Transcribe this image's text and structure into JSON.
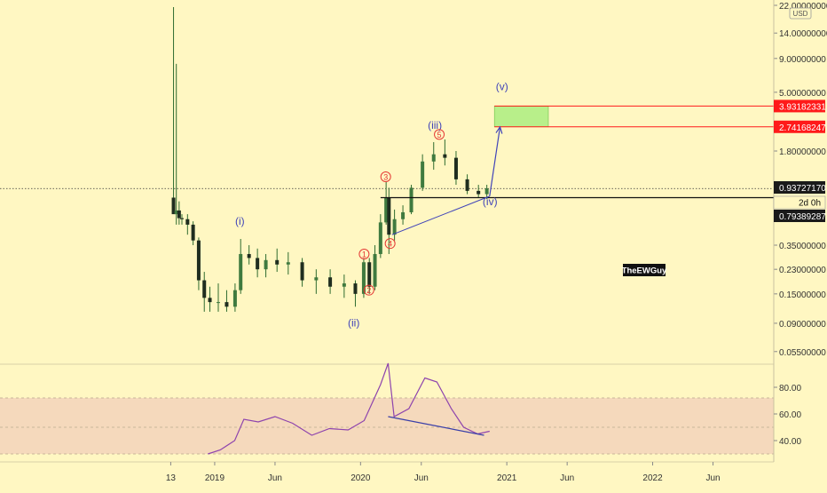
{
  "currency_badge": "USD",
  "watermark": "TheEWGuy",
  "countdown": "2d 0h",
  "price_axis": {
    "ticks": [
      "22.00000000",
      "14.00000000",
      "9.00000000",
      "5.00000000",
      "1.80000000",
      "0.35000000",
      "0.23000000",
      "0.15000000",
      "0.09000000",
      "0.05500000"
    ]
  },
  "price_badges": [
    {
      "label": "3.93182331",
      "color": "#ff1a1a",
      "text_color": "#ffffff",
      "value": 3.93182331
    },
    {
      "label": "2.74168247",
      "color": "#ff1a1a",
      "text_color": "#ffffff",
      "value": 2.74168247
    },
    {
      "label": "0.93727170",
      "color": "#1a1a1a",
      "text_color": "#ffffff",
      "value": 0.9372717
    },
    {
      "label": "0.79389287",
      "color": "#1a1a1a",
      "text_color": "#ffffff",
      "value": 0.79389287
    }
  ],
  "rsi_axis": {
    "ticks": [
      "80.00",
      "60.00",
      "40.00"
    ]
  },
  "time_axis": {
    "ticks": [
      "13",
      "2019",
      "Jun",
      "2020",
      "Jun",
      "2021",
      "Jun",
      "2022",
      "Jun"
    ]
  },
  "wave_labels": [
    "(i)",
    "(ii)",
    "(iii)",
    "(iv)",
    "(v)",
    "1",
    "2",
    "3",
    "4",
    "5"
  ],
  "colors": {
    "background": "#fff7c2",
    "candle": "#1f2d1f",
    "wick": "#2f6b2f",
    "wave": "#4044b8",
    "wave_circle": "#e53935",
    "target_zone": "#b8ef8a",
    "rsi": "#8e44ad",
    "rsi_band": "#f5d9bc",
    "rsi_divergence": "#3a3fa8",
    "target_line": "#ff1a1a"
  },
  "chart_data": [
    {
      "type": "candlestick",
      "scale": "log",
      "ylim": [
        0.045,
        22
      ],
      "xlim": [
        "2018-09-01",
        "2022-10-31"
      ],
      "grid": false,
      "ohlc_weekly_approx": [
        {
          "x": "2018-09-20",
          "o": 0.8,
          "h": 22.0,
          "l": 0.65,
          "c": 0.6
        },
        {
          "x": "2018-09-27",
          "o": 0.6,
          "h": 8.2,
          "l": 0.5,
          "c": 0.64
        },
        {
          "x": "2018-10-04",
          "o": 0.64,
          "h": 0.75,
          "l": 0.5,
          "c": 0.56
        },
        {
          "x": "2018-10-11",
          "o": 0.56,
          "h": 0.6,
          "l": 0.5,
          "c": 0.55
        },
        {
          "x": "2018-10-25",
          "o": 0.55,
          "h": 0.6,
          "l": 0.42,
          "c": 0.5
        },
        {
          "x": "2018-11-08",
          "o": 0.5,
          "h": 0.53,
          "l": 0.35,
          "c": 0.38
        },
        {
          "x": "2018-11-22",
          "o": 0.38,
          "h": 0.4,
          "l": 0.16,
          "c": 0.19
        },
        {
          "x": "2018-12-06",
          "o": 0.19,
          "h": 0.22,
          "l": 0.11,
          "c": 0.14
        },
        {
          "x": "2018-12-20",
          "o": 0.14,
          "h": 0.17,
          "l": 0.11,
          "c": 0.13
        },
        {
          "x": "2019-01-10",
          "o": 0.13,
          "h": 0.18,
          "l": 0.11,
          "c": 0.13
        },
        {
          "x": "2019-01-31",
          "o": 0.13,
          "h": 0.16,
          "l": 0.11,
          "c": 0.12
        },
        {
          "x": "2019-02-21",
          "o": 0.12,
          "h": 0.18,
          "l": 0.11,
          "c": 0.16
        },
        {
          "x": "2019-03-07",
          "o": 0.16,
          "h": 0.39,
          "l": 0.15,
          "c": 0.3
        },
        {
          "x": "2019-03-28",
          "o": 0.3,
          "h": 0.35,
          "l": 0.25,
          "c": 0.28
        },
        {
          "x": "2019-04-18",
          "o": 0.28,
          "h": 0.33,
          "l": 0.2,
          "c": 0.23
        },
        {
          "x": "2019-05-09",
          "o": 0.23,
          "h": 0.3,
          "l": 0.2,
          "c": 0.27
        },
        {
          "x": "2019-06-06",
          "o": 0.27,
          "h": 0.33,
          "l": 0.22,
          "c": 0.25
        },
        {
          "x": "2019-07-04",
          "o": 0.25,
          "h": 0.31,
          "l": 0.21,
          "c": 0.26
        },
        {
          "x": "2019-08-08",
          "o": 0.26,
          "h": 0.28,
          "l": 0.17,
          "c": 0.19
        },
        {
          "x": "2019-09-12",
          "o": 0.19,
          "h": 0.23,
          "l": 0.15,
          "c": 0.2
        },
        {
          "x": "2019-10-17",
          "o": 0.2,
          "h": 0.23,
          "l": 0.15,
          "c": 0.17
        },
        {
          "x": "2019-11-21",
          "o": 0.17,
          "h": 0.21,
          "l": 0.14,
          "c": 0.18
        },
        {
          "x": "2019-12-19",
          "o": 0.18,
          "h": 0.19,
          "l": 0.12,
          "c": 0.15
        },
        {
          "x": "2020-01-09",
          "o": 0.15,
          "h": 0.28,
          "l": 0.14,
          "c": 0.26
        },
        {
          "x": "2020-01-23",
          "o": 0.26,
          "h": 0.28,
          "l": 0.15,
          "c": 0.17
        },
        {
          "x": "2020-02-06",
          "o": 0.17,
          "h": 0.35,
          "l": 0.16,
          "c": 0.3
        },
        {
          "x": "2020-02-20",
          "o": 0.3,
          "h": 0.6,
          "l": 0.28,
          "c": 0.52
        },
        {
          "x": "2020-03-05",
          "o": 0.52,
          "h": 1.05,
          "l": 0.5,
          "c": 0.8
        },
        {
          "x": "2020-03-12",
          "o": 0.8,
          "h": 0.95,
          "l": 0.3,
          "c": 0.42
        },
        {
          "x": "2020-03-26",
          "o": 0.42,
          "h": 0.65,
          "l": 0.38,
          "c": 0.55
        },
        {
          "x": "2020-04-16",
          "o": 0.55,
          "h": 0.7,
          "l": 0.5,
          "c": 0.62
        },
        {
          "x": "2020-05-07",
          "o": 0.62,
          "h": 1.0,
          "l": 0.6,
          "c": 0.95
        },
        {
          "x": "2020-06-04",
          "o": 0.95,
          "h": 1.7,
          "l": 0.9,
          "c": 1.5
        },
        {
          "x": "2020-07-02",
          "o": 1.5,
          "h": 2.1,
          "l": 1.3,
          "c": 1.7
        },
        {
          "x": "2020-07-30",
          "o": 1.7,
          "h": 2.2,
          "l": 1.4,
          "c": 1.6
        },
        {
          "x": "2020-08-27",
          "o": 1.6,
          "h": 1.8,
          "l": 1.0,
          "c": 1.1
        },
        {
          "x": "2020-09-24",
          "o": 1.1,
          "h": 1.2,
          "l": 0.85,
          "c": 0.9
        },
        {
          "x": "2020-10-22",
          "o": 0.9,
          "h": 1.0,
          "l": 0.8,
          "c": 0.85
        },
        {
          "x": "2020-11-12",
          "o": 0.85,
          "h": 1.0,
          "l": 0.78,
          "c": 0.94
        }
      ],
      "projection": [
        {
          "x": "2020-11-19",
          "y": 0.82,
          "label": "(iv)"
        },
        {
          "x": "2020-12-15",
          "y": 3.0,
          "label": "(v)"
        }
      ],
      "target_zone": {
        "from": "2020-12-01",
        "to": "2021-04-15",
        "low": 2.74168247,
        "high": 3.93182331
      },
      "trendline": [
        {
          "x": "2020-03-20",
          "y": 0.42
        },
        {
          "x": "2020-11-19",
          "y": 0.82
        }
      ],
      "resistance": {
        "from": "2020-02-20",
        "y": 0.8
      }
    },
    {
      "type": "line",
      "name": "RSI",
      "ylim": [
        20,
        105
      ],
      "band": [
        30,
        72
      ],
      "x": [
        "2018-12-15",
        "2019-01-15",
        "2019-02-20",
        "2019-03-15",
        "2019-04-20",
        "2019-06-01",
        "2019-07-15",
        "2019-09-01",
        "2019-10-15",
        "2019-12-01",
        "2020-01-10",
        "2020-02-20",
        "2020-03-10",
        "2020-03-25",
        "2020-05-01",
        "2020-06-10",
        "2020-07-10",
        "2020-08-15",
        "2020-09-15",
        "2020-10-20",
        "2020-11-19"
      ],
      "values": [
        30,
        33,
        40,
        56,
        54,
        58,
        53,
        44,
        49,
        48,
        55,
        82,
        98,
        58,
        64,
        87,
        84,
        64,
        50,
        45,
        47
      ],
      "divergence": [
        {
          "x": "2020-03-10",
          "y": 58
        },
        {
          "x": "2020-11-05",
          "y": 44
        }
      ]
    }
  ]
}
